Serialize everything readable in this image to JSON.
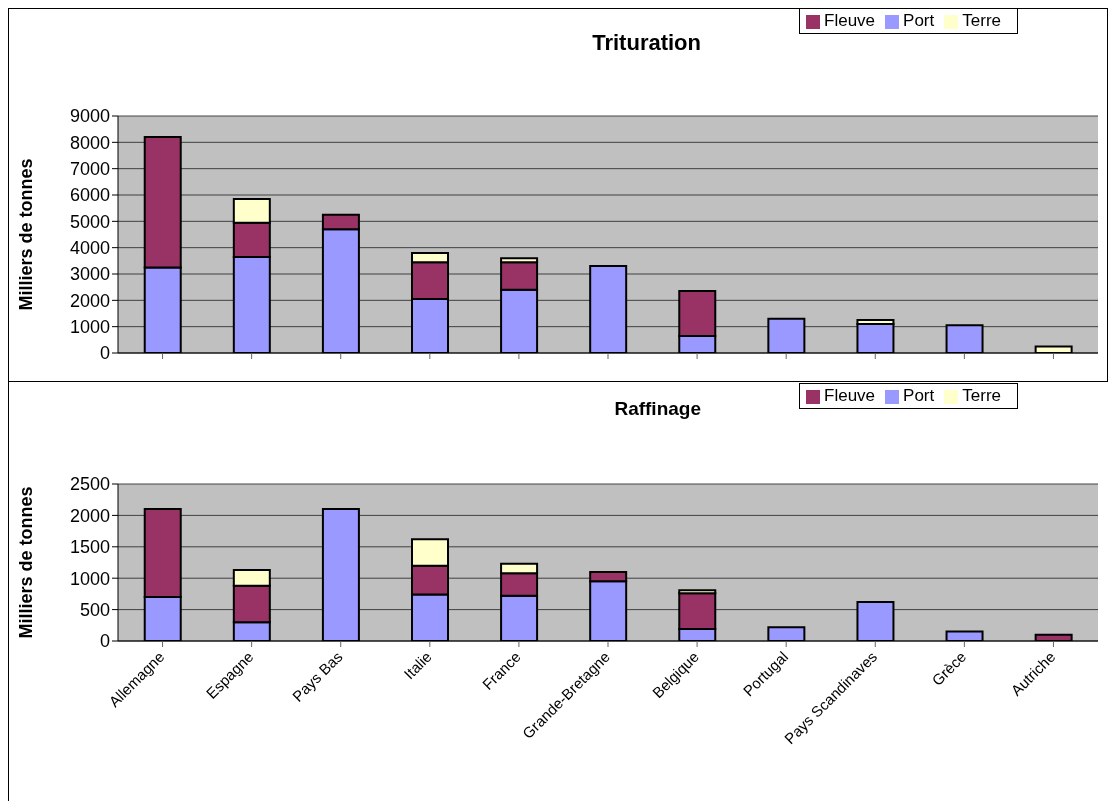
{
  "chart_data": [
    {
      "type": "bar",
      "title": "Trituration",
      "ylabel": "Milliers de tonnes",
      "stacked": true,
      "categories": [
        null,
        null,
        null,
        null,
        null,
        null,
        null,
        null,
        null,
        null,
        null
      ],
      "tick_labels": "y",
      "ylim": [
        0,
        9000
      ],
      "yticks": [
        0,
        1000,
        2000,
        3000,
        4000,
        5000,
        6000,
        7000,
        8000,
        9000
      ],
      "grid": "y",
      "legend": "top right",
      "series": [
        {
          "name": "Port",
          "color": "#9999ff",
          "values": [
            3250,
            3650,
            4700,
            2050,
            2400,
            3300,
            650,
            1300,
            1100,
            1050,
            0
          ]
        },
        {
          "name": "Fleuve",
          "color": "#993366",
          "values": [
            4950,
            1300,
            550,
            1400,
            1050,
            0,
            1700,
            0,
            0,
            0,
            0
          ]
        },
        {
          "name": "Terre",
          "color": "#ffffcc",
          "values": [
            0,
            900,
            0,
            350,
            150,
            0,
            0,
            0,
            150,
            0,
            250
          ]
        }
      ]
    },
    {
      "type": "bar",
      "title": "Raffinage",
      "ylabel": "Milliers de tonnes",
      "stacked": true,
      "categories": [
        "Allemagne",
        "Espagne",
        "Pays Bas",
        "Italie",
        "France",
        "Grande-Bretagne",
        "Belgique",
        "Portugal",
        "Pays Scandinaves",
        "Grèce",
        "Autriche"
      ],
      "ylim": [
        0,
        2500
      ],
      "yticks": [
        0,
        500,
        1000,
        1500,
        2000,
        2500
      ],
      "grid": "y",
      "legend": "top right",
      "series": [
        {
          "name": "Port",
          "color": "#9999ff",
          "values": [
            700,
            300,
            2100,
            740,
            720,
            950,
            190,
            220,
            620,
            150,
            0
          ]
        },
        {
          "name": "Fleuve",
          "color": "#993366",
          "values": [
            1400,
            580,
            0,
            460,
            360,
            150,
            570,
            0,
            0,
            0,
            100
          ]
        },
        {
          "name": "Terre",
          "color": "#ffffcc",
          "values": [
            0,
            250,
            0,
            420,
            150,
            0,
            50,
            0,
            0,
            0,
            0
          ]
        }
      ]
    }
  ]
}
